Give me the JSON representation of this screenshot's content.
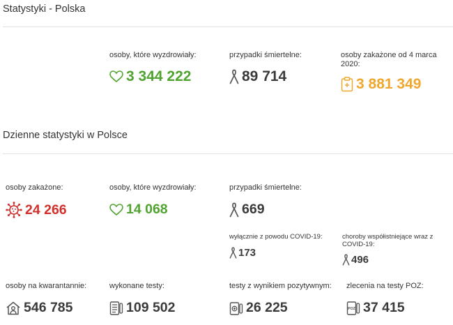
{
  "poland": {
    "title": "Statystyki - Polska",
    "recovered": {
      "label": "osoby, które wyzdrowiały:",
      "value": "3 344 222",
      "icon": "heart-icon"
    },
    "deaths": {
      "label": "przypadki śmiertelne:",
      "value": "89 714",
      "icon": "ribbon-icon"
    },
    "infected_total": {
      "label": "osoby zakażone od 4 marca 2020:",
      "value": "3 881 349",
      "icon": "clipboard-icon"
    }
  },
  "daily": {
    "title": "Dzienne statystyki w Polsce",
    "infected": {
      "label": "osoby zakażone:",
      "value": "24 266",
      "icon": "virus-icon"
    },
    "recovered": {
      "label": "osoby, które wyzdrowiały:",
      "value": "14 068",
      "icon": "heart-icon"
    },
    "deaths": {
      "label": "przypadki śmiertelne:",
      "value": "669",
      "icon": "ribbon-icon"
    },
    "deaths_covid_only": {
      "label": "wyłącznie z powodu COVID-19:",
      "value": "173",
      "icon": "ribbon-icon"
    },
    "deaths_comorbid": {
      "label": "choroby współistniejące wraz z COVID-19:",
      "value": "496",
      "icon": "ribbon-icon"
    },
    "quarantine": {
      "label": "osoby na kwarantannie:",
      "value": "546 785",
      "icon": "house-person-icon"
    },
    "tests": {
      "label": "wykonane testy:",
      "value": "109 502",
      "icon": "test-list-icon"
    },
    "positive_tests": {
      "label": "testy z wynikiem pozytywnym:",
      "value": "26 225",
      "icon": "positive-test-icon"
    },
    "poz_orders": {
      "label": "zlecenia na testy POZ:",
      "value": "37 415",
      "icon": "poz-icon"
    },
    "poz_icon_text": "POZ"
  },
  "colors": {
    "green": "#4fa32e",
    "red": "#d0312d",
    "orange": "#f0a72d",
    "dark": "#3a3a3a"
  }
}
